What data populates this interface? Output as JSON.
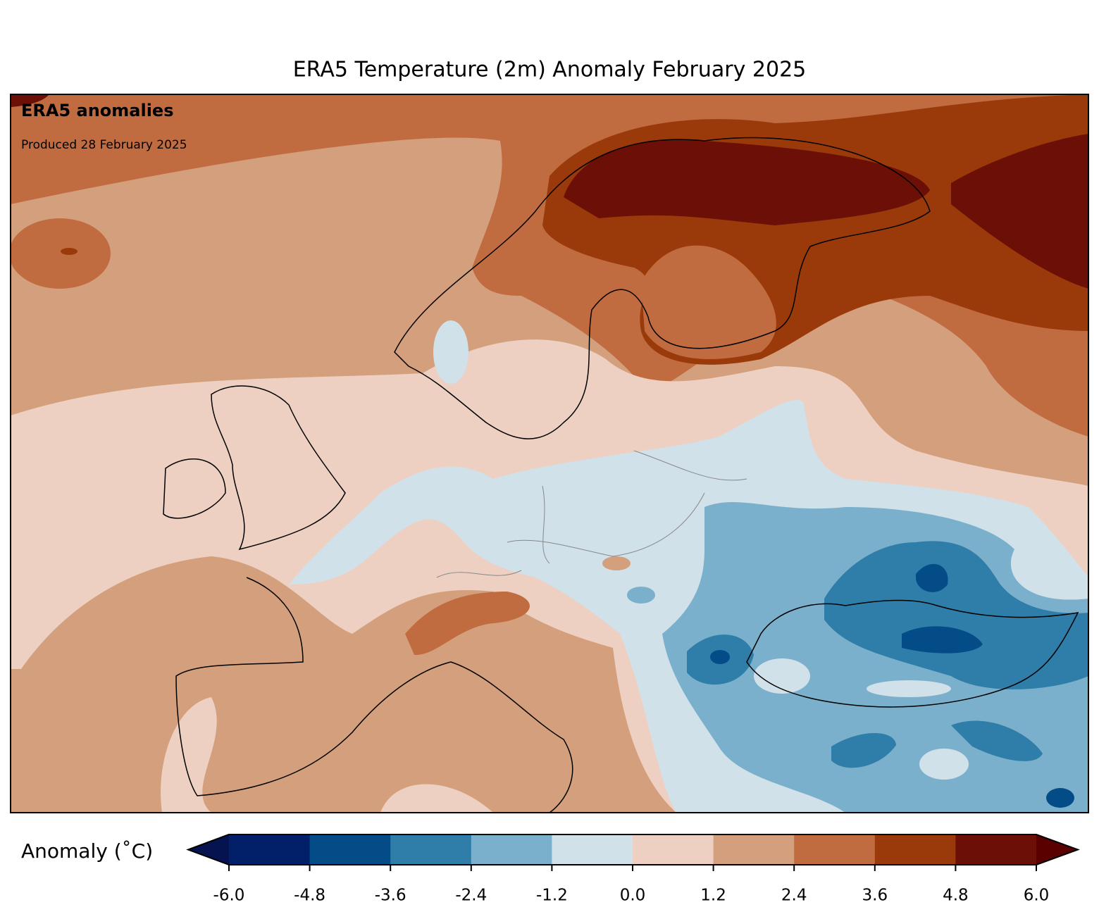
{
  "title": "ERA5 Temperature (2m) Anomaly February 2025",
  "annotations": {
    "label": "ERA5 anomalies",
    "produced": "Produced 28 February 2025"
  },
  "colorbar": {
    "label": "Anomaly (˚C)",
    "lim": [
      -6,
      6
    ],
    "ticks": [
      {
        "value": -6,
        "label": "-6.0"
      },
      {
        "value": -4.8,
        "label": "-4.8"
      },
      {
        "value": -3.6,
        "label": "-3.6"
      },
      {
        "value": -2.4,
        "label": "-2.4"
      },
      {
        "value": -1.2,
        "label": "-1.2"
      },
      {
        "value": 0,
        "label": "0.0"
      },
      {
        "value": 1.2,
        "label": "1.2"
      },
      {
        "value": 2.4,
        "label": "2.4"
      },
      {
        "value": 3.6,
        "label": "3.6"
      },
      {
        "value": 4.8,
        "label": "4.8"
      },
      {
        "value": 6,
        "label": "6.0"
      }
    ],
    "colors": [
      "#012069",
      "#044c87",
      "#2e7ea9",
      "#7bb0cc",
      "#d0e1ea",
      "#edd0c2",
      "#d49f7c",
      "#c06c40",
      "#9a3a0a",
      "#6b0f07"
    ],
    "under_color": "#051450",
    "over_color": "#5a0000"
  }
}
